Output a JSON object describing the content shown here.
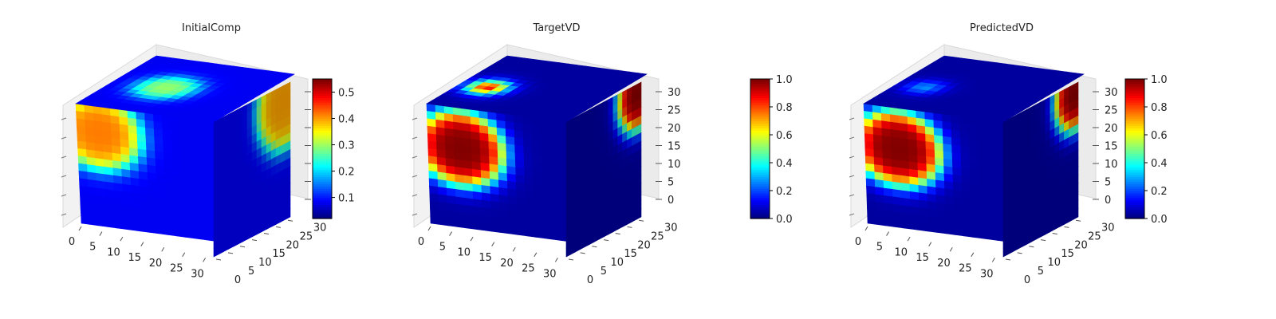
{
  "chart_data": [
    {
      "type": "voxel3d",
      "title": "InitialComp",
      "axes": {
        "x": [
          0,
          5,
          10,
          15,
          20,
          25,
          30
        ],
        "y": [
          0,
          5,
          10,
          15,
          20,
          25,
          30
        ],
        "z": []
      },
      "colorbar": {
        "min": 0.02,
        "max": 0.55,
        "ticks": [
          0.1,
          0.2,
          0.3,
          0.4,
          0.5
        ]
      },
      "background_value": 0.08,
      "blobs": [
        {
          "face": "front",
          "u": 0.16,
          "v": 0.22,
          "r": 0.3,
          "value": 0.42
        },
        {
          "face": "top",
          "u": 0.48,
          "v": 0.38,
          "r": 0.2,
          "value": 0.3
        },
        {
          "face": "right",
          "u": 0.92,
          "v": 0.12,
          "r": 0.35,
          "value": 0.4
        }
      ]
    },
    {
      "type": "voxel3d",
      "title": "TargetVD",
      "axes": {
        "x": [
          0,
          5,
          10,
          15,
          20,
          25,
          30
        ],
        "y": [
          0,
          5,
          10,
          15,
          20,
          25,
          30
        ],
        "z": [
          0,
          5,
          10,
          15,
          20,
          25,
          30
        ]
      },
      "colorbar": {
        "min": 0.0,
        "max": 1.0,
        "ticks": [
          0.0,
          0.2,
          0.4,
          0.6,
          0.8,
          1.0
        ]
      },
      "background_value": 0.03,
      "blobs": [
        {
          "face": "front",
          "u": 0.24,
          "v": 0.34,
          "r": 0.3,
          "value": 1.0
        },
        {
          "face": "top",
          "u": 0.42,
          "v": 0.2,
          "r": 0.1,
          "value": 1.0
        },
        {
          "face": "right",
          "u": 0.95,
          "v": 0.08,
          "r": 0.25,
          "value": 1.0
        }
      ]
    },
    {
      "type": "voxel3d",
      "title": "PredictedVD",
      "axes": {
        "x": [
          0,
          5,
          10,
          15,
          20,
          25,
          30
        ],
        "y": [
          0,
          5,
          10,
          15,
          20,
          25,
          30
        ],
        "z": [
          0,
          5,
          10,
          15,
          20,
          25,
          30
        ]
      },
      "colorbar": {
        "min": 0.0,
        "max": 1.0,
        "ticks": [
          0.0,
          0.2,
          0.4,
          0.6,
          0.8,
          1.0
        ]
      },
      "background_value": 0.03,
      "blobs": [
        {
          "face": "front",
          "u": 0.24,
          "v": 0.34,
          "r": 0.3,
          "value": 1.0
        },
        {
          "face": "top",
          "u": 0.42,
          "v": 0.2,
          "r": 0.1,
          "value": 0.3
        },
        {
          "face": "right",
          "u": 0.95,
          "v": 0.08,
          "r": 0.25,
          "value": 1.0
        }
      ]
    }
  ]
}
